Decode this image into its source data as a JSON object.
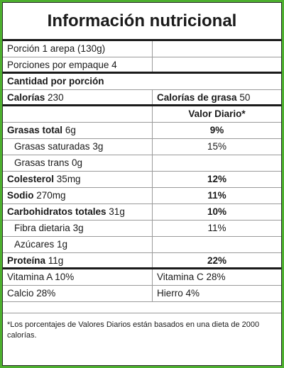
{
  "title": "Información nutricional",
  "serving": {
    "size_label": "Porción 1 arepa (130g)",
    "per_container_label": "Porciones por empaque 4"
  },
  "amount_header": "Cantidad por porción",
  "calories": {
    "label": "Calorías",
    "value": "230",
    "fat_label": "Calorías de grasa",
    "fat_value": "50"
  },
  "daily_value_header": "Valor Diario*",
  "nutrients": [
    {
      "label": "Grasas total",
      "amount": "6g",
      "dv": "9%",
      "bold": true,
      "indent": false
    },
    {
      "label": "Grasas saturadas",
      "amount": "3g",
      "dv": "15%",
      "bold": false,
      "indent": true
    },
    {
      "label": "Grasas trans",
      "amount": "0g",
      "dv": "",
      "bold": false,
      "indent": true
    },
    {
      "label": "Colesterol",
      "amount": "35mg",
      "dv": "12%",
      "bold": true,
      "indent": false
    },
    {
      "label": "Sodio",
      "amount": "270mg",
      "dv": "11%",
      "bold": true,
      "indent": false
    },
    {
      "label": "Carbohidratos totales",
      "amount": "31g",
      "dv": "10%",
      "bold": true,
      "indent": false
    },
    {
      "label": "Fibra dietaria",
      "amount": "3g",
      "dv": "11%",
      "bold": false,
      "indent": true
    },
    {
      "label": "Azúcares",
      "amount": "1g",
      "dv": "",
      "bold": false,
      "indent": true
    },
    {
      "label": "Proteína",
      "amount": "11g",
      "dv": "22%",
      "bold": true,
      "indent": false
    }
  ],
  "vitamins": [
    {
      "left": "Vitamina A 10%",
      "right": "Vitamina C 28%"
    },
    {
      "left": "Calcio 28%",
      "right": "Hierro 4%"
    }
  ],
  "footnote": "*Los porcentajes de Valores Diarios están basados en una dieta de 2000 calorías.",
  "colors": {
    "frame": "#4caf2e",
    "panel": "#ffffff",
    "text": "#1a1a1a"
  }
}
